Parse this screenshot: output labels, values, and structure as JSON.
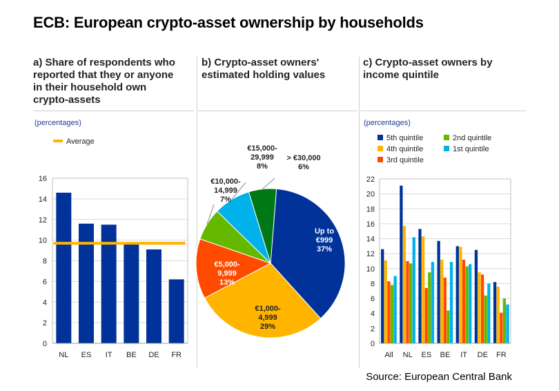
{
  "title": "ECB: European crypto-asset ownership by households",
  "source": "Source: European Central Bank",
  "colors": {
    "navy": "#003299",
    "yellow": "#ffb400",
    "orange": "#ff4b00",
    "green": "#65b800",
    "light_blue": "#00b1ea",
    "dark_green": "#007816"
  },
  "chart_data": [
    {
      "type": "bar",
      "title": "a) Share of respondents who reported that they or anyone in their household own crypto-assets",
      "title_lines": [
        "a) Share of respondents who",
        "reported that they or anyone",
        "in their household own",
        "crypto-assets"
      ],
      "units": "(percentages)",
      "categories": [
        "NL",
        "ES",
        "IT",
        "BE",
        "DE",
        "FR"
      ],
      "values": [
        14.6,
        11.6,
        11.5,
        9.7,
        9.1,
        6.2
      ],
      "average": 9.7,
      "average_label": "Average",
      "ylim": [
        0,
        16
      ],
      "yticks": [
        0,
        2,
        4,
        6,
        8,
        10,
        12,
        14,
        16
      ],
      "grid": true
    },
    {
      "type": "pie",
      "title": "b) Crypto-asset owners' estimated holding values",
      "title_lines": [
        "b) Crypto-asset owners'",
        "estimated holding values"
      ],
      "slices": [
        {
          "label": "Up to €999",
          "label_lines": [
            "Up to",
            "€999",
            "37%"
          ],
          "value": 37,
          "color": "#003299"
        },
        {
          "label": "€1,000-4,999",
          "label_lines": [
            "€1,000-",
            "4,999",
            "29%"
          ],
          "value": 29,
          "color": "#ffb400"
        },
        {
          "label": "€5,000-9,999",
          "label_lines": [
            "€5,000-",
            "9,999",
            "13%"
          ],
          "value": 13,
          "color": "#ff4b00"
        },
        {
          "label": "€10,000-14,999",
          "label_lines": [
            "€10,000-",
            "14,999",
            "7%"
          ],
          "value": 7,
          "color": "#65b800"
        },
        {
          "label": "€15,000-29,999",
          "label_lines": [
            "€15,000-",
            "29,999",
            "8%"
          ],
          "value": 8,
          "color": "#00b1ea"
        },
        {
          "label": "> €30,000",
          "label_lines": [
            "> €30,000",
            "6%"
          ],
          "value": 6,
          "color": "#007816"
        }
      ]
    },
    {
      "type": "bar",
      "title": "c) Crypto-asset owners by income quintile",
      "title_lines": [
        "c) Crypto-asset owners by",
        "income quintile"
      ],
      "units": "(percentages)",
      "categories": [
        "All",
        "NL",
        "ES",
        "BE",
        "IT",
        "DE",
        "FR"
      ],
      "series": [
        {
          "name": "5th quintile",
          "color": "#003299",
          "values": [
            12.6,
            21.1,
            15.3,
            13.7,
            13.0,
            12.5,
            8.2
          ]
        },
        {
          "name": "4th quintile",
          "color": "#ffb400",
          "values": [
            11.1,
            15.7,
            14.3,
            11.2,
            12.9,
            9.5,
            7.6
          ]
        },
        {
          "name": "3rd quintile",
          "color": "#ff4b00",
          "values": [
            8.3,
            11.0,
            7.4,
            8.8,
            11.2,
            9.2,
            4.1
          ]
        },
        {
          "name": "2nd quintile",
          "color": "#65b800",
          "values": [
            7.8,
            10.7,
            9.5,
            4.4,
            10.3,
            6.4,
            6.0
          ]
        },
        {
          "name": "1st quintile",
          "color": "#00b1ea",
          "values": [
            9.0,
            14.2,
            10.9,
            10.9,
            10.6,
            8.0,
            5.2
          ]
        }
      ],
      "legend_order": [
        "5th quintile",
        "2nd quintile",
        "4th quintile",
        "1st quintile",
        "3rd quintile"
      ],
      "ylim": [
        0,
        22
      ],
      "yticks": [
        0,
        2,
        4,
        6,
        8,
        10,
        12,
        14,
        16,
        18,
        20,
        22
      ],
      "grid": true
    }
  ]
}
